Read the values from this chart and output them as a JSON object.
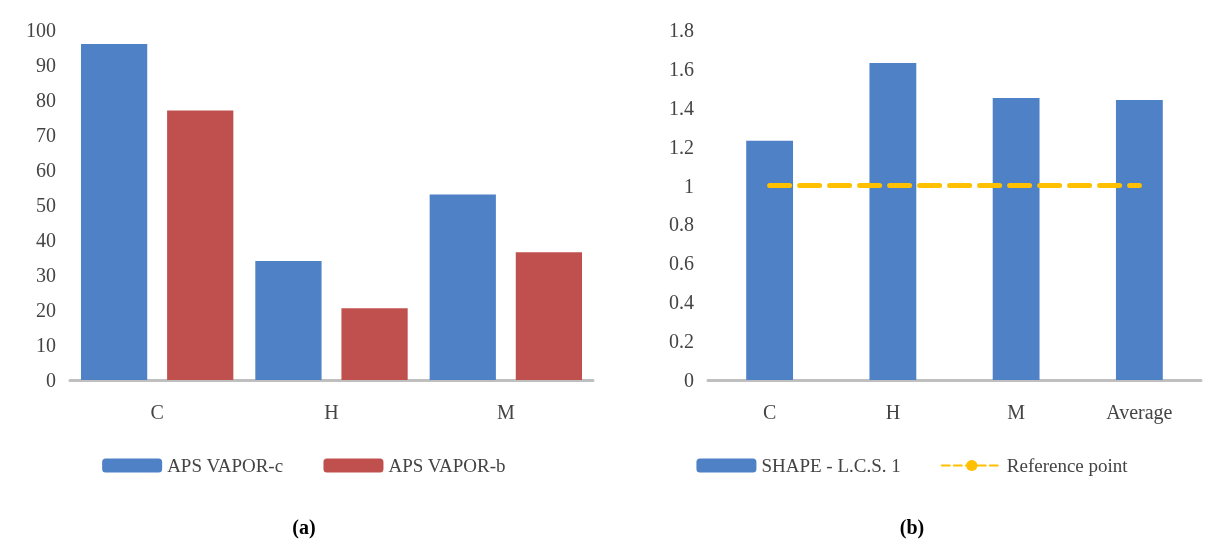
{
  "chart_data": [
    {
      "type": "bar",
      "title": "(a)",
      "categories": [
        "C",
        "H",
        "M"
      ],
      "ylim": [
        0,
        100
      ],
      "yticks": [
        0,
        10,
        20,
        30,
        40,
        50,
        60,
        70,
        80,
        90,
        100
      ],
      "grid": false,
      "legend": "bottom",
      "series": [
        {
          "name": "APS VAPOR-c",
          "color": "#4f81c7",
          "values": [
            96,
            34,
            53
          ]
        },
        {
          "name": "APS VAPOR-b",
          "color": "#c0504d",
          "values": [
            77,
            20.5,
            36.5
          ]
        }
      ]
    },
    {
      "type": "bar",
      "title": "(b)",
      "categories": [
        "C",
        "H",
        "M",
        "Average"
      ],
      "ylim": [
        0,
        1.8
      ],
      "yticks": [
        0,
        0.2,
        0.4,
        0.6,
        0.8,
        1,
        1.2,
        1.4,
        1.6,
        1.8
      ],
      "grid": false,
      "legend": "bottom",
      "series": [
        {
          "name": "SHAPE - L.C.S. 1",
          "color": "#4f81c7",
          "values": [
            1.23,
            1.63,
            1.45,
            1.44
          ]
        },
        {
          "name": "Reference point",
          "type": "line",
          "line_style": "dashed",
          "marker": "none",
          "color": "#ffc000",
          "values": [
            1,
            1,
            1,
            1
          ]
        }
      ]
    }
  ]
}
